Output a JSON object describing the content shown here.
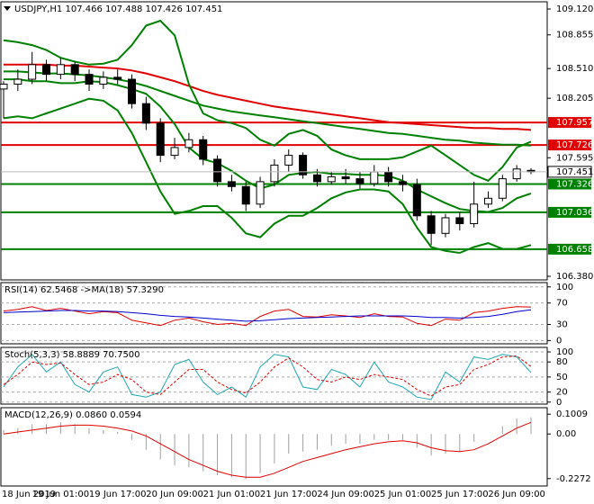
{
  "chart_data": [
    {
      "type": "candlestick",
      "title": "USDJPY,H1  107.466 107.488 107.426 107.451",
      "categories": [
        "18 Jun 2019",
        null,
        null,
        null,
        "19 Jun 01:00",
        null,
        null,
        null,
        "19 Jun 17:00",
        null,
        null,
        null,
        "20 Jun 09:00",
        null,
        null,
        null,
        "21 Jun 01:00",
        null,
        null,
        null,
        "21 Jun 17:00",
        null,
        null,
        null,
        "24 Jun 09:00",
        null,
        null,
        null,
        "25 Jun 01:00",
        null,
        null,
        null,
        "25 Jun 17:00",
        null,
        null,
        null,
        "26 Jun 09:00",
        null
      ],
      "open": [
        108.3,
        108.35,
        108.4,
        108.55,
        108.45,
        108.55,
        108.45,
        108.35,
        108.42,
        108.4,
        108.15,
        107.95,
        107.62,
        107.7,
        107.78,
        107.58,
        107.35,
        107.3,
        107.12,
        107.35,
        107.52,
        107.62,
        107.42,
        107.35,
        107.4,
        107.38,
        107.33,
        107.45,
        107.35,
        107.32,
        107.0,
        106.82,
        106.98,
        106.92,
        107.12,
        107.18,
        107.38,
        107.466
      ],
      "high": [
        108.38,
        108.5,
        108.68,
        108.6,
        108.62,
        108.58,
        108.5,
        108.48,
        108.5,
        108.45,
        108.22,
        108.0,
        107.8,
        107.85,
        107.82,
        107.62,
        107.42,
        107.35,
        107.4,
        107.58,
        107.68,
        107.65,
        107.48,
        107.45,
        107.48,
        107.45,
        107.52,
        107.5,
        107.42,
        107.38,
        107.05,
        107.02,
        107.04,
        107.35,
        107.25,
        107.42,
        107.52,
        107.488
      ],
      "low": [
        108.0,
        108.28,
        108.35,
        108.38,
        108.4,
        108.38,
        108.28,
        108.3,
        108.35,
        108.1,
        107.88,
        107.55,
        107.58,
        107.65,
        107.52,
        107.3,
        107.25,
        107.05,
        107.08,
        107.3,
        107.45,
        107.38,
        107.3,
        107.32,
        107.33,
        107.28,
        107.3,
        107.3,
        107.25,
        106.95,
        106.7,
        106.78,
        106.85,
        106.88,
        107.08,
        107.15,
        107.35,
        107.426
      ],
      "close": [
        108.35,
        108.4,
        108.55,
        108.45,
        108.55,
        108.45,
        108.35,
        108.42,
        108.4,
        108.15,
        107.95,
        107.62,
        107.7,
        107.78,
        107.58,
        107.35,
        107.3,
        107.12,
        107.35,
        107.52,
        107.62,
        107.42,
        107.35,
        107.4,
        107.38,
        107.33,
        107.45,
        107.35,
        107.32,
        107.0,
        106.82,
        106.98,
        106.92,
        107.12,
        107.18,
        107.38,
        107.48,
        107.451
      ],
      "series": [
        {
          "color": "#e00000",
          "values": [
            108.55,
            108.55,
            108.55,
            108.55,
            108.54,
            108.54,
            108.53,
            108.52,
            108.51,
            108.49,
            108.46,
            108.42,
            108.38,
            108.33,
            108.28,
            108.24,
            108.21,
            108.18,
            108.15,
            108.12,
            108.1,
            108.08,
            108.06,
            108.04,
            108.02,
            108.0,
            107.98,
            107.96,
            107.95,
            107.94,
            107.93,
            107.92,
            107.91,
            107.9,
            107.9,
            107.89,
            107.89,
            107.88
          ]
        },
        {
          "color": "#008000",
          "values": [
            108.48,
            108.48,
            108.47,
            108.46,
            108.46,
            108.45,
            108.44,
            108.42,
            108.4,
            108.37,
            108.33,
            108.28,
            108.23,
            108.18,
            108.13,
            108.1,
            108.07,
            108.05,
            108.03,
            108.01,
            107.99,
            107.97,
            107.95,
            107.93,
            107.91,
            107.89,
            107.87,
            107.85,
            107.84,
            107.82,
            107.8,
            107.78,
            107.77,
            107.75,
            107.74,
            107.73,
            107.73,
            107.72
          ]
        },
        {
          "color": "#008000",
          "values": [
            108.8,
            108.78,
            108.75,
            108.7,
            108.62,
            108.58,
            108.55,
            108.56,
            108.6,
            108.75,
            108.95,
            109.0,
            108.85,
            108.35,
            108.05,
            107.98,
            107.95,
            107.9,
            107.78,
            107.72,
            107.84,
            107.88,
            107.82,
            107.68,
            107.62,
            107.58,
            107.58,
            107.58,
            107.6,
            107.66,
            107.72,
            107.62,
            107.52,
            107.42,
            107.36,
            107.5,
            107.7,
            107.76
          ]
        },
        {
          "color": "#008000",
          "values": [
            108.4,
            108.4,
            108.38,
            108.38,
            108.36,
            108.36,
            108.38,
            108.37,
            108.34,
            108.3,
            108.25,
            108.12,
            107.94,
            107.7,
            107.58,
            107.54,
            107.46,
            107.36,
            107.28,
            107.32,
            107.42,
            107.44,
            107.45,
            107.43,
            107.43,
            107.42,
            107.42,
            107.41,
            107.36,
            107.27,
            107.2,
            107.13,
            107.07,
            107.05,
            107.04,
            107.08,
            107.18,
            107.23
          ]
        },
        {
          "color": "#008000",
          "values": [
            108.0,
            108.02,
            108.0,
            108.05,
            108.1,
            108.15,
            108.2,
            108.18,
            108.08,
            107.85,
            107.55,
            107.25,
            107.02,
            107.05,
            107.1,
            107.1,
            106.98,
            106.82,
            106.78,
            106.92,
            107.0,
            107.0,
            107.08,
            107.18,
            107.24,
            107.27,
            107.27,
            107.25,
            107.12,
            106.88,
            106.68,
            106.64,
            106.62,
            106.68,
            106.72,
            106.66,
            106.66,
            106.7
          ]
        }
      ],
      "levels": [
        {
          "value": 107.957,
          "color": "#e00000"
        },
        {
          "value": 107.726,
          "color": "#e00000"
        },
        {
          "value": 107.326,
          "color": "#008000"
        },
        {
          "value": 107.036,
          "color": "#008000"
        },
        {
          "value": 106.658,
          "color": "#008000"
        }
      ],
      "ylim": [
        106.343,
        109.194
      ],
      "yticks": [
        {
          "value": 109.12,
          "label": "109.120"
        },
        108.855,
        {
          "value": 108.51,
          "label": "108.510"
        },
        108.205,
        107.595,
        {
          "value": 106.38,
          "label": "106.380"
        }
      ]
    },
    {
      "type": "line",
      "title": "RSI(14) 62.5468 ->MA(18) 57.3290",
      "series": [
        {
          "color": "#e00000",
          "values": [
            55,
            58,
            63,
            56,
            60,
            55,
            50,
            54,
            52,
            38,
            33,
            28,
            38,
            42,
            35,
            30,
            32,
            28,
            45,
            55,
            58,
            45,
            44,
            48,
            46,
            43,
            50,
            45,
            44,
            32,
            28,
            40,
            38,
            52,
            55,
            60,
            63,
            62.5468
          ]
        },
        {
          "color": "#0000cc",
          "values": [
            52,
            53,
            54,
            55,
            56,
            56,
            55,
            55,
            54,
            52,
            50,
            47,
            45,
            44,
            42,
            40,
            38,
            36,
            37,
            39,
            41,
            42,
            43,
            44,
            45,
            46,
            46,
            46,
            46,
            45,
            43,
            43,
            42,
            43,
            45,
            49,
            54,
            57.329
          ]
        }
      ],
      "ylim": [
        -6,
        108
      ],
      "yticks": [
        100,
        70,
        30,
        0
      ],
      "grid": true
    },
    {
      "type": "line",
      "title": "Stoch(5,3,3) 58.8889 70.7500",
      "series": [
        {
          "color": "#20a8b0",
          "values": [
            30,
            70,
            95,
            60,
            80,
            35,
            20,
            60,
            70,
            15,
            10,
            20,
            75,
            85,
            40,
            15,
            30,
            10,
            70,
            95,
            90,
            30,
            25,
            65,
            55,
            30,
            80,
            40,
            30,
            10,
            5,
            60,
            40,
            90,
            85,
            95,
            90,
            58.8889
          ]
        },
        {
          "color": "#e00000",
          "dashed": true,
          "values": [
            35,
            55,
            80,
            75,
            78,
            55,
            35,
            40,
            55,
            45,
            20,
            15,
            40,
            65,
            65,
            40,
            25,
            18,
            40,
            70,
            88,
            70,
            45,
            40,
            50,
            45,
            55,
            50,
            45,
            25,
            12,
            30,
            35,
            65,
            75,
            90,
            92,
            70.75
          ]
        }
      ],
      "ylim": [
        -4,
        109
      ],
      "yticks": [
        100,
        80,
        50,
        20,
        0
      ],
      "grid": true
    },
    {
      "type": "bar",
      "title": "MACD(12,26,9) 0.0860 0.0594",
      "color": "#a0a0a0",
      "values": [
        0.02,
        0.03,
        0.05,
        0.05,
        0.06,
        0.05,
        0.03,
        0.02,
        0.01,
        -0.03,
        -0.08,
        -0.13,
        -0.16,
        -0.17,
        -0.19,
        -0.21,
        -0.22,
        -0.23,
        -0.2,
        -0.15,
        -0.1,
        -0.09,
        -0.08,
        -0.06,
        -0.05,
        -0.05,
        -0.03,
        -0.03,
        -0.03,
        -0.07,
        -0.11,
        -0.1,
        -0.09,
        -0.04,
        0.0,
        0.04,
        0.08,
        0.086
      ],
      "series": [
        {
          "color": "#e00000",
          "values": [
            0.0,
            0.01,
            0.02,
            0.03,
            0.04,
            0.045,
            0.045,
            0.04,
            0.03,
            0.015,
            -0.01,
            -0.05,
            -0.09,
            -0.13,
            -0.16,
            -0.19,
            -0.21,
            -0.22,
            -0.22,
            -0.2,
            -0.17,
            -0.14,
            -0.12,
            -0.1,
            -0.08,
            -0.065,
            -0.05,
            -0.04,
            -0.035,
            -0.045,
            -0.07,
            -0.085,
            -0.09,
            -0.08,
            -0.05,
            -0.01,
            0.03,
            0.0594
          ]
        }
      ],
      "ylim": [
        -0.265,
        0.134
      ],
      "yticks": [
        0.1009,
        {
          "value": 0,
          "label": "0.00"
        },
        -0.2272
      ]
    }
  ]
}
